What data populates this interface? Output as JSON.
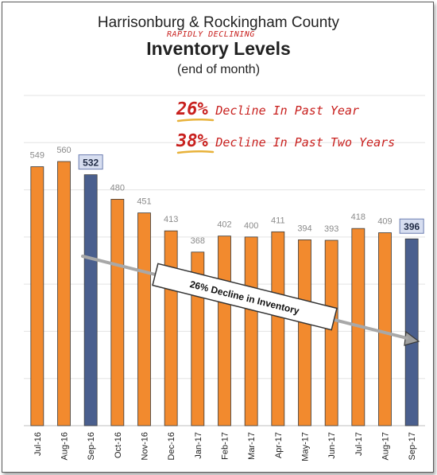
{
  "header": {
    "title_line1": "Harrisonburg & Rockingham County",
    "handwritten_note": "RAPIDLY DECLINING",
    "title_line2": "Inventory Levels",
    "subtitle": "(end of month)"
  },
  "callouts": [
    {
      "pct": "26%",
      "text": "Decline In Past Year"
    },
    {
      "pct": "38%",
      "text": "Decline In Past Two Years"
    }
  ],
  "trend_label": "26% Decline in Inventory",
  "colors": {
    "bar_default": "#f28a2e",
    "bar_highlight": "#4a5f8e",
    "label_default": "#8a8a8a",
    "label_highlight": "#1f2a44",
    "label_highlight_bg": "#d7def0",
    "handwriting": "#c8201e",
    "underline": "#e8b23a"
  },
  "chart_data": {
    "type": "bar",
    "categories": [
      "Jul-16",
      "Aug-16",
      "Sep-16",
      "Oct-16",
      "Nov-16",
      "Dec-16",
      "Jan-17",
      "Feb-17",
      "Mar-17",
      "Apr-17",
      "May-17",
      "Jun-17",
      "Jul-17",
      "Aug-17",
      "Sep-17"
    ],
    "values": [
      549,
      560,
      532,
      480,
      451,
      413,
      368,
      402,
      400,
      411,
      394,
      393,
      418,
      409,
      396
    ],
    "highlighted": [
      "Sep-16",
      "Sep-17"
    ],
    "title": "Inventory Levels",
    "ylim": [
      0,
      700
    ],
    "grid": true
  }
}
